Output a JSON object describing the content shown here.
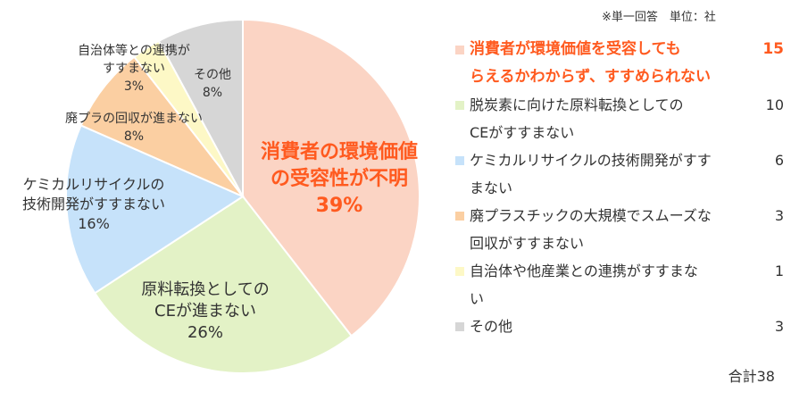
{
  "note": "※単一回答　単位：社",
  "total_label": "合計38",
  "chart_data": {
    "type": "pie",
    "unit": "社",
    "slices": [
      {
        "legend": [
          "消費者が環境価値を受容しても",
          "らえるかわからず、すすめられない"
        ],
        "label": [
          "消費者の環境価値",
          "の受容性が不明",
          "39%"
        ],
        "value": 15,
        "percent": 39,
        "color": "#fbd4c4",
        "highlight": true
      },
      {
        "legend": [
          "脱炭素に向けた原料転換としての",
          "CEがすすまない"
        ],
        "label": [
          "原料転換としての",
          "CEが進まない",
          "26%"
        ],
        "value": 10,
        "percent": 26,
        "color": "#e3f2c6",
        "highlight": false
      },
      {
        "legend": [
          "ケミカルリサイクルの技術開発がすす",
          "まない"
        ],
        "label": [
          "ケミカルリサイクルの",
          "技術開発がすすまない",
          "16%"
        ],
        "value": 6,
        "percent": 16,
        "color": "#c6e2fa",
        "highlight": false
      },
      {
        "legend": [
          "廃プラスチックの大規模でスムーズな",
          "回収がすすまない"
        ],
        "label": [
          "廃プラの回収が進まない",
          "8%"
        ],
        "value": 3,
        "percent": 8,
        "color": "#fbcfa2",
        "highlight": false
      },
      {
        "legend": [
          "自治体や他産業との連携がすすまな",
          "い"
        ],
        "label": [
          "自治体等との連携が",
          "すすまない",
          "3%"
        ],
        "value": 1,
        "percent": 3,
        "color": "#fdf8c6",
        "highlight": false
      },
      {
        "legend": [
          "その他"
        ],
        "label": [
          "その他",
          "8%"
        ],
        "value": 3,
        "percent": 8,
        "color": "#d6d6d6",
        "highlight": false
      }
    ]
  }
}
